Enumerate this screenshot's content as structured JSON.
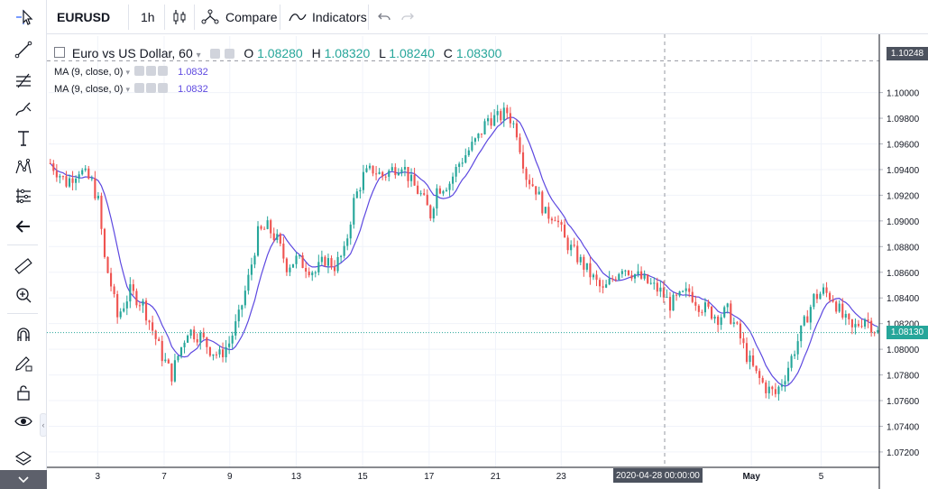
{
  "toolbar": {
    "symbol": "EURUSD",
    "interval": "1h",
    "compare_label": "Compare",
    "indicators_label": "Indicators"
  },
  "legend": {
    "title": "Euro vs US Dollar, 60",
    "o_label": "O",
    "o": "1.08280",
    "h_label": "H",
    "h": "1.08320",
    "l_label": "L",
    "l": "1.08240",
    "c_label": "C",
    "c": "1.08300",
    "ma1": {
      "label": "MA (9, close, 0)",
      "value": "1.0832"
    },
    "ma2": {
      "label": "MA (9, close, 0)",
      "value": "1.0832"
    }
  },
  "crosshair": {
    "price": "1.10248",
    "date": "2020-04-28 00:00:00"
  },
  "last_price": "1.08130",
  "left_tools": [
    "cursor-icon",
    "trend-line-icon",
    "fib-icon",
    "brush-icon",
    "text-icon",
    "pattern-icon",
    "prediction-icon",
    "back-arrow-icon",
    "ruler-icon",
    "zoom-icon",
    "magnet-icon",
    "lock-draw-icon",
    "lock-icon",
    "eye-icon",
    "layers-icon"
  ],
  "colors": {
    "up": "#26a69a",
    "down": "#ef5350",
    "ma": "#5d48e0",
    "grid": "#f0f3fa",
    "axis": "#b2b5be",
    "crosshair": "#9598a1",
    "last": "#26a69a",
    "tag": "#4c525e"
  },
  "chart_data": {
    "type": "candlestick",
    "title": "Euro vs US Dollar, 60",
    "ylim": [
      1.0708,
      1.1044
    ],
    "yticks": [
      "1.07200",
      "1.07400",
      "1.07600",
      "1.07800",
      "1.08000",
      "1.08200",
      "1.08400",
      "1.08600",
      "1.08800",
      "1.09000",
      "1.09200",
      "1.09400",
      "1.09600",
      "1.09800",
      "1.10000"
    ],
    "xticks": [
      "3",
      "7",
      "9",
      "13",
      "15",
      "17",
      "21",
      "23",
      "May",
      "5"
    ],
    "x": [
      1,
      2,
      3,
      4,
      5,
      6,
      7,
      8,
      9,
      10,
      11,
      12,
      13,
      14,
      15,
      16,
      17,
      18,
      19,
      20,
      21,
      22,
      23,
      24,
      25,
      26,
      27,
      28,
      29,
      30,
      31,
      32,
      33,
      34,
      35,
      36,
      37,
      38,
      39,
      40,
      41,
      42,
      43,
      44,
      45,
      46,
      47,
      48,
      49,
      50,
      51,
      52,
      53,
      54,
      55,
      56,
      57,
      58,
      59,
      60,
      61,
      62,
      63,
      64,
      65,
      66,
      67,
      68,
      69,
      70,
      71,
      72,
      73,
      74,
      75,
      76,
      77,
      78,
      79,
      80,
      81,
      82,
      83,
      84,
      85,
      86,
      87,
      88,
      89,
      90,
      91,
      92,
      93,
      94,
      95,
      96,
      97,
      98,
      99,
      100,
      101,
      102,
      103,
      104,
      105,
      106,
      107,
      108,
      109,
      110,
      111,
      112,
      113,
      114,
      115,
      116,
      117,
      118,
      119,
      120,
      121,
      122,
      123,
      124,
      125,
      126,
      127,
      128,
      129,
      130,
      131,
      132,
      133,
      134,
      135,
      136,
      137,
      138,
      139,
      140,
      141,
      142,
      143,
      144,
      145,
      146,
      147,
      148,
      149,
      150,
      151,
      152,
      153,
      154,
      155,
      156,
      157,
      158,
      159,
      160,
      161,
      162,
      163,
      164,
      165,
      166,
      167,
      168,
      169,
      170,
      171,
      172,
      173,
      174,
      175,
      176,
      177,
      178,
      179,
      180,
      181,
      182,
      183,
      184,
      185,
      186,
      187,
      188,
      189,
      190,
      191,
      192,
      193,
      194,
      195,
      196,
      197,
      198,
      199,
      200,
      201,
      202,
      203,
      204,
      205,
      206,
      207,
      208,
      209,
      210,
      211,
      212,
      213,
      214,
      215,
      216,
      217,
      218,
      219,
      220,
      221,
      222,
      223,
      224,
      225,
      226,
      227,
      228,
      229,
      230,
      231,
      232,
      233,
      234,
      235,
      236,
      237,
      238,
      239,
      240,
      241,
      242,
      243,
      244,
      245,
      246,
      247,
      248,
      249,
      250,
      251,
      252,
      253,
      254,
      255,
      256,
      257,
      258,
      259,
      260
    ],
    "close_path": [
      [
        1,
        1.0945
      ],
      [
        6,
        1.093
      ],
      [
        10,
        1.094
      ],
      [
        14,
        1.093
      ],
      [
        16,
        1.0915
      ],
      [
        18,
        1.087
      ],
      [
        20,
        1.085
      ],
      [
        22,
        1.0825
      ],
      [
        26,
        1.0845
      ],
      [
        30,
        1.0835
      ],
      [
        33,
        1.0815
      ],
      [
        36,
        1.0795
      ],
      [
        39,
        1.078
      ],
      [
        41,
        1.0795
      ],
      [
        44,
        1.0815
      ],
      [
        48,
        1.081
      ],
      [
        51,
        1.08
      ],
      [
        54,
        1.0795
      ],
      [
        57,
        1.0805
      ],
      [
        60,
        1.0825
      ],
      [
        63,
        1.0855
      ],
      [
        66,
        1.089
      ],
      [
        69,
        1.0895
      ],
      [
        72,
        1.0885
      ],
      [
        75,
        1.0865
      ],
      [
        78,
        1.087
      ],
      [
        81,
        1.0865
      ],
      [
        84,
        1.086
      ],
      [
        87,
        1.087
      ],
      [
        90,
        1.0865
      ],
      [
        93,
        1.0875
      ],
      [
        96,
        1.0915
      ],
      [
        99,
        1.0935
      ],
      [
        102,
        1.094
      ],
      [
        105,
        1.0935
      ],
      [
        108,
        1.094
      ],
      [
        111,
        1.0945
      ],
      [
        114,
        1.093
      ],
      [
        117,
        1.092
      ],
      [
        120,
        1.0905
      ],
      [
        122,
        1.0925
      ],
      [
        126,
        1.093
      ],
      [
        129,
        1.0945
      ],
      [
        132,
        1.0955
      ],
      [
        135,
        1.0965
      ],
      [
        138,
        1.098
      ],
      [
        141,
        1.098
      ],
      [
        144,
        1.0985
      ],
      [
        147,
        1.097
      ],
      [
        150,
        1.0935
      ],
      [
        153,
        1.0925
      ],
      [
        156,
        1.0905
      ],
      [
        159,
        1.0905
      ],
      [
        162,
        1.0885
      ],
      [
        165,
        1.0875
      ],
      [
        168,
        1.0865
      ],
      [
        171,
        1.0855
      ],
      [
        174,
        1.0845
      ],
      [
        177,
        1.0855
      ],
      [
        180,
        1.0865
      ],
      [
        183,
        1.086
      ],
      [
        186,
        1.0855
      ],
      [
        189,
        1.085
      ],
      [
        192,
        1.0845
      ],
      [
        195,
        1.0835
      ],
      [
        198,
        1.084
      ],
      [
        201,
        1.0845
      ],
      [
        204,
        1.0835
      ],
      [
        207,
        1.083
      ],
      [
        210,
        1.0825
      ],
      [
        213,
        1.083
      ],
      [
        216,
        1.0815
      ],
      [
        219,
        1.0795
      ],
      [
        222,
        1.078
      ],
      [
        225,
        1.077
      ],
      [
        228,
        1.0765
      ],
      [
        231,
        1.078
      ],
      [
        234,
        1.08
      ],
      [
        237,
        1.082
      ],
      [
        240,
        1.084
      ],
      [
        243,
        1.0845
      ],
      [
        246,
        1.084
      ],
      [
        249,
        1.0825
      ],
      [
        252,
        1.0815
      ],
      [
        256,
        1.0825
      ],
      [
        260,
        1.0813
      ]
    ],
    "last": 1.0813
  }
}
